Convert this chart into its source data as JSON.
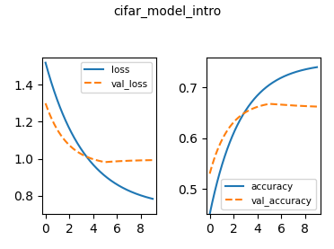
{
  "title": "cifar_model_intro",
  "color_train": "#1f77b4",
  "color_val": "#ff7f0e",
  "loss_label": "loss",
  "val_loss_label": "val_loss",
  "acc_label": "accuracy",
  "val_acc_label": "val_accuracy",
  "left_ylim": [
    0.7,
    1.55
  ],
  "right_ylim": [
    0.45,
    0.76
  ],
  "xlim": [
    -0.3,
    9.3
  ],
  "xticks": [
    0,
    2,
    4,
    6,
    8
  ],
  "title_fontsize": 10,
  "legend_fontsize": 7.5,
  "linewidth": 1.5
}
